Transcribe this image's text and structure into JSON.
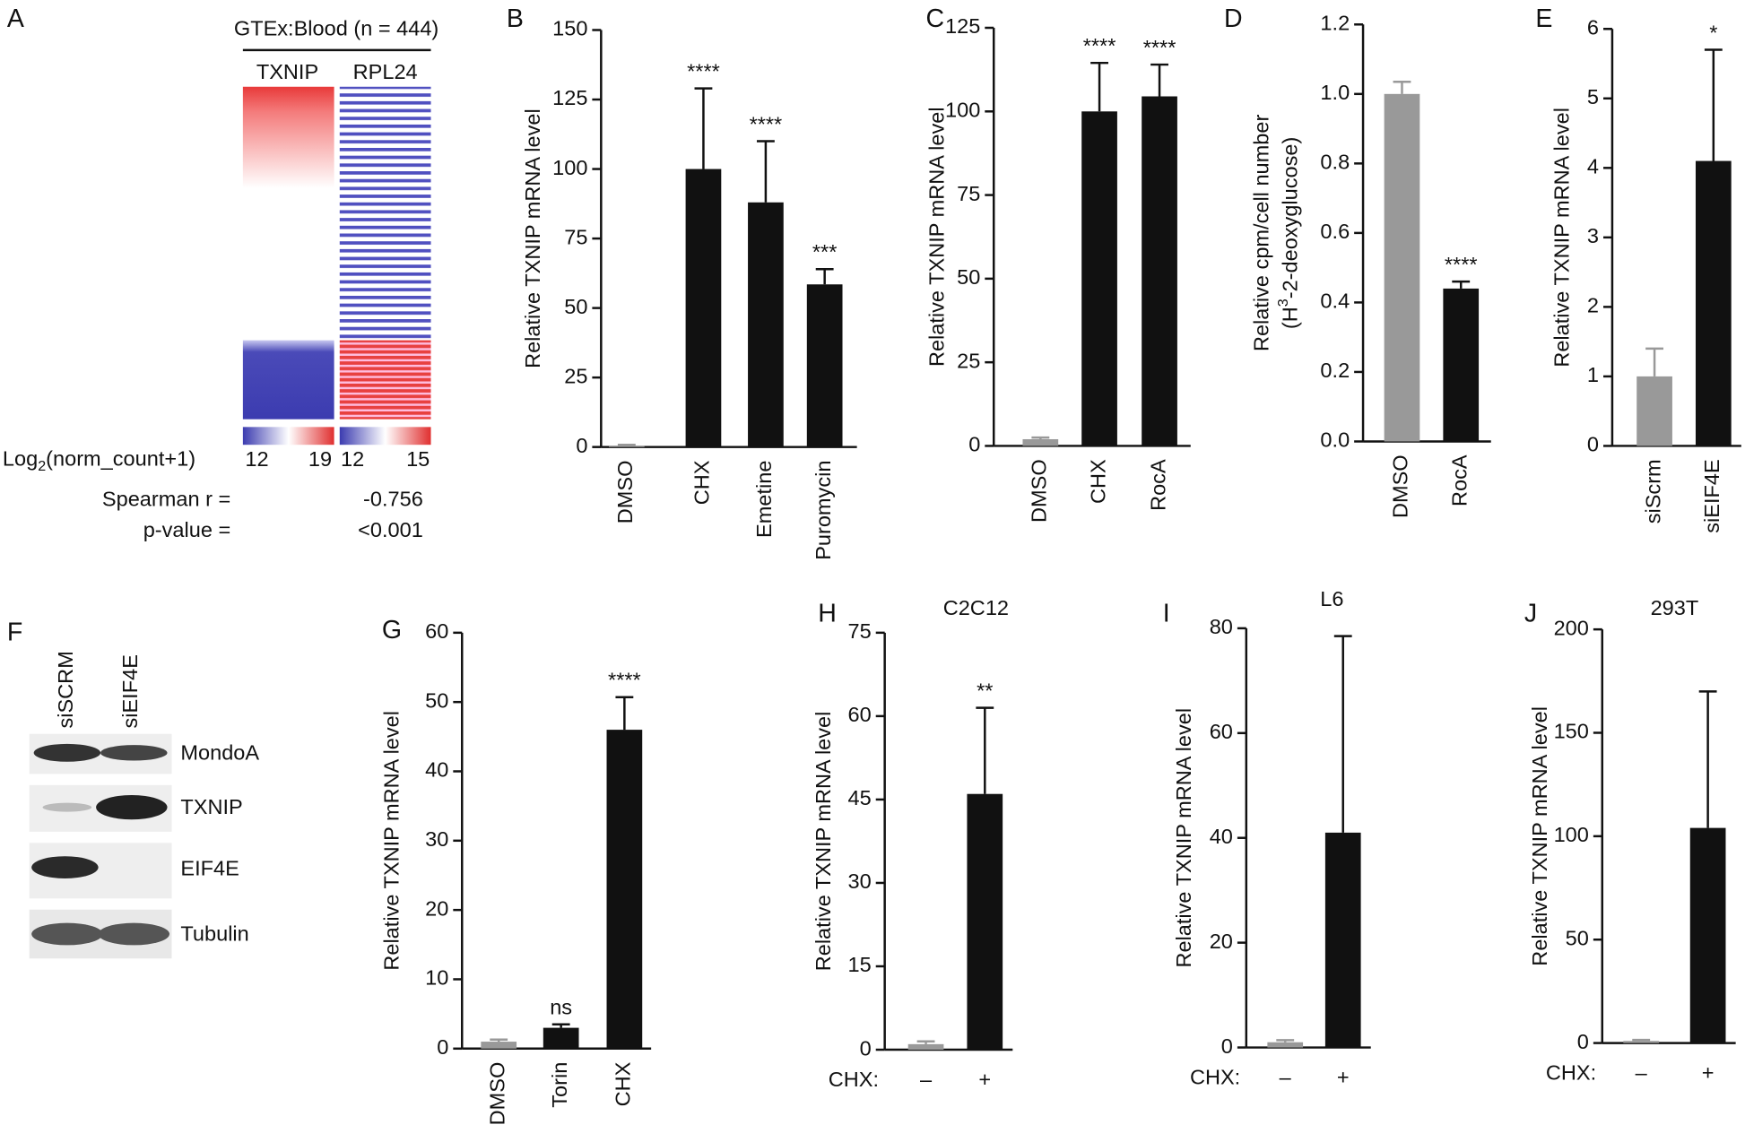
{
  "chart_data": [
    {
      "type": "bar",
      "panel": "B",
      "y_label": "Relative TXNIP mRNA level",
      "categories": [
        "DMSO",
        "CHX",
        "Emetine",
        "Puromycin"
      ],
      "values": [
        0.5,
        100,
        88,
        58.5
      ],
      "errors": [
        0.3,
        29,
        22,
        5.5
      ],
      "colors": [
        "#999999",
        "#111111",
        "#111111",
        "#111111"
      ],
      "annotations": [
        null,
        "****",
        "****",
        "***"
      ],
      "ylim": [
        0,
        150
      ],
      "yticks": [
        0,
        25,
        50,
        75,
        100,
        125,
        150
      ]
    },
    {
      "type": "bar",
      "panel": "C",
      "y_label": "Relative TXNIP mRNA level",
      "categories": [
        "DMSO",
        "CHX",
        "RocA"
      ],
      "values": [
        2,
        100,
        104.5
      ],
      "errors": [
        0.5,
        14.5,
        9.5
      ],
      "colors": [
        "#999999",
        "#111111",
        "#111111"
      ],
      "annotations": [
        null,
        "****",
        "****"
      ],
      "ylim": [
        0,
        125
      ],
      "yticks": [
        0,
        25,
        50,
        75,
        100,
        125
      ]
    },
    {
      "type": "bar",
      "panel": "D",
      "y_label": "Relative cpm/cell number",
      "y_label2": {
        "pre": "(H",
        "sup": "3",
        "post": "-2-deoxyglucose)"
      },
      "categories": [
        "DMSO",
        "RocA"
      ],
      "values": [
        1.0,
        0.44
      ],
      "errors": [
        0.035,
        0.02
      ],
      "colors": [
        "#999999",
        "#111111"
      ],
      "annotations": [
        null,
        "****"
      ],
      "ylim": [
        0,
        1.2
      ],
      "yticks": [
        {
          "value": 0,
          "label": "0.0"
        },
        0.2,
        0.4,
        0.6,
        0.8,
        {
          "value": 1,
          "label": "1.0"
        },
        1.2
      ]
    },
    {
      "type": "bar",
      "panel": "E",
      "y_label": "Relative TXNIP mRNA level",
      "categories": [
        "siScrm",
        "siEIF4E"
      ],
      "values": [
        1.0,
        4.1
      ],
      "errors": [
        0.4,
        1.6
      ],
      "colors": [
        "#999999",
        "#111111"
      ],
      "annotations": [
        null,
        "*"
      ],
      "ylim": [
        0,
        6
      ],
      "yticks": [
        0,
        1,
        2,
        3,
        4,
        5,
        6
      ]
    },
    {
      "type": "bar",
      "panel": "G",
      "y_label": "Relative TXNIP mRNA level",
      "categories": [
        "DMSO",
        "Torin",
        "CHX"
      ],
      "values": [
        1,
        3,
        46
      ],
      "errors": [
        0.3,
        0.5,
        4.7
      ],
      "colors": [
        "#999999",
        "#111111",
        "#111111"
      ],
      "annotations": [
        null,
        "ns",
        "****"
      ],
      "ylim": [
        0,
        60
      ],
      "yticks": [
        0,
        10,
        20,
        30,
        40,
        50,
        60
      ]
    },
    {
      "type": "bar",
      "panel": "H",
      "title": "C2C12",
      "y_label": "Relative TXNIP mRNA level",
      "x_prefix": "CHX:",
      "categories": [
        "–",
        "+"
      ],
      "values": [
        1,
        46
      ],
      "errors": [
        0.5,
        15.5
      ],
      "colors": [
        "#999999",
        "#111111"
      ],
      "annotations": [
        null,
        "**"
      ],
      "ylim": [
        0,
        75
      ],
      "yticks": [
        0,
        15,
        30,
        45,
        60,
        75
      ]
    },
    {
      "type": "bar",
      "panel": "I",
      "title": "L6",
      "y_label": "Relative TXNIP mRNA level",
      "x_prefix": "CHX:",
      "categories": [
        "–",
        "+"
      ],
      "values": [
        1,
        41
      ],
      "errors": [
        0.4,
        37.5
      ],
      "colors": [
        "#999999",
        "#111111"
      ],
      "annotations": [
        null,
        null
      ],
      "ylim": [
        0,
        80
      ],
      "yticks": [
        0,
        20,
        40,
        60,
        80
      ]
    },
    {
      "type": "bar",
      "panel": "J",
      "title": "293T",
      "y_label": "Relative TXNIP mRNA level",
      "x_prefix": "CHX:",
      "categories": [
        "–",
        "+"
      ],
      "values": [
        1,
        104
      ],
      "errors": [
        0.5,
        66
      ],
      "colors": [
        "#999999",
        "#111111"
      ],
      "annotations": [
        null,
        null
      ],
      "ylim": [
        0,
        200
      ],
      "yticks": [
        0,
        50,
        100,
        150,
        200
      ]
    }
  ],
  "panel_a": {
    "panel": "A",
    "title": "GTEx:Blood (n = 444)",
    "genes": [
      "TXNIP",
      "RPL24"
    ],
    "scale_label": {
      "pre": "Log",
      "sub": "2",
      "post": "(norm_count+1)"
    },
    "scale_ticks": [
      "12",
      "19",
      "12",
      "15"
    ],
    "stat_labels": [
      "Spearman r =",
      "p-value ="
    ],
    "stat_values": [
      "-0.756",
      "<0.001"
    ]
  },
  "panel_f": {
    "panel": "F",
    "lanes": [
      "siSCRM",
      "siEIF4E"
    ],
    "proteins": [
      "MondoA",
      "TXNIP",
      "EIF4E",
      "Tubulin"
    ]
  }
}
